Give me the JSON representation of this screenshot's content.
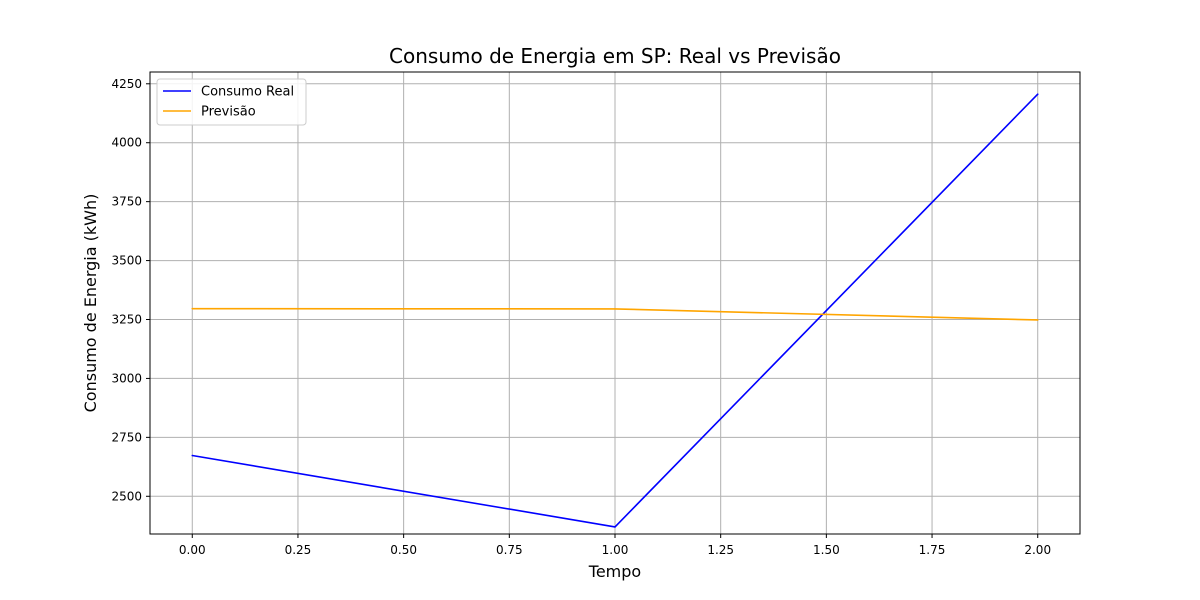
{
  "chart_data": {
    "type": "line",
    "title": "Consumo de Energia em SP: Real vs Previsão",
    "xlabel": "Tempo",
    "ylabel": "Consumo de Energia (kWh)",
    "xlim": [
      -0.1,
      2.1
    ],
    "ylim": [
      2340,
      4300
    ],
    "xticks": [
      0.0,
      0.25,
      0.5,
      0.75,
      1.0,
      1.25,
      1.5,
      1.75,
      2.0
    ],
    "xtick_labels": [
      "0.00",
      "0.25",
      "0.50",
      "0.75",
      "1.00",
      "1.25",
      "1.50",
      "1.75",
      "2.00"
    ],
    "yticks": [
      2500,
      2750,
      3000,
      3250,
      3500,
      3750,
      4000,
      4250
    ],
    "ytick_labels": [
      "2500",
      "2750",
      "3000",
      "3250",
      "3500",
      "3750",
      "4000",
      "4250"
    ],
    "grid": true,
    "legend_position": "top-left",
    "x": [
      0,
      1,
      2
    ],
    "series": [
      {
        "name": "Consumo Real",
        "color": "#0000ff",
        "values": [
          2673,
          2370,
          4206
        ]
      },
      {
        "name": "Previsão",
        "color": "#ffa500",
        "values": [
          3296,
          3295,
          3248
        ]
      }
    ]
  }
}
